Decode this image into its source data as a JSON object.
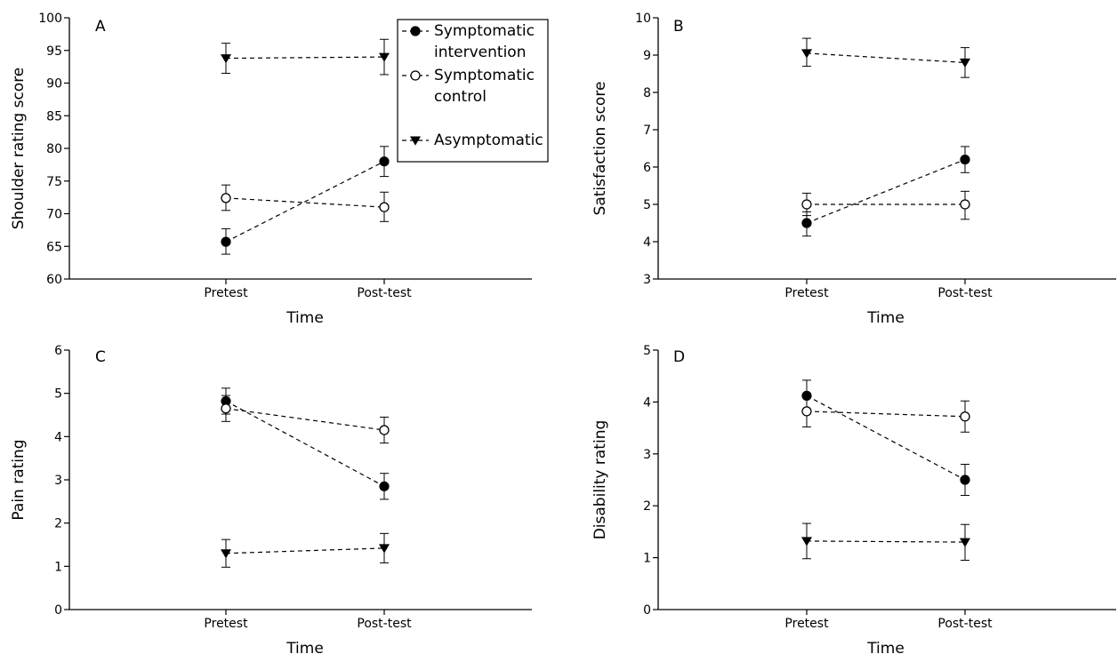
{
  "figure": {
    "legend": {
      "items": [
        {
          "label_lines": [
            "Symptomatic",
            "intervention"
          ],
          "marker": "filled-circle"
        },
        {
          "label_lines": [
            "Symptomatic",
            "control"
          ],
          "marker": "open-circle"
        },
        {
          "label_lines": [
            "Asymptomatic"
          ],
          "marker": "filled-triangle-down"
        }
      ]
    }
  },
  "chart_data": [
    {
      "type": "line",
      "panel_label": "A",
      "xlabel": "Time",
      "ylabel": "Shoulder rating score",
      "categories": [
        "Pretest",
        "Post-test"
      ],
      "ylim": [
        60,
        100
      ],
      "yticks": [
        60,
        65,
        70,
        75,
        80,
        85,
        90,
        95,
        100
      ],
      "grid": false,
      "series": [
        {
          "name": "Symptomatic intervention",
          "marker": "filled-circle",
          "values": [
            65.7,
            78.0
          ],
          "err_low": [
            63.8,
            75.7
          ],
          "err_high": [
            67.7,
            80.3
          ]
        },
        {
          "name": "Symptomatic control",
          "marker": "open-circle",
          "values": [
            72.4,
            71.0
          ],
          "err_low": [
            70.5,
            68.8
          ],
          "err_high": [
            74.4,
            73.3
          ]
        },
        {
          "name": "Asymptomatic",
          "marker": "filled-triangle-down",
          "values": [
            93.8,
            94.0
          ],
          "err_low": [
            91.5,
            91.3
          ],
          "err_high": [
            96.1,
            96.7
          ]
        }
      ]
    },
    {
      "type": "line",
      "panel_label": "B",
      "xlabel": "Time",
      "ylabel": "Satisfaction score",
      "categories": [
        "Pretest",
        "Post-test"
      ],
      "ylim": [
        3,
        10
      ],
      "yticks": [
        3,
        4,
        5,
        6,
        7,
        8,
        9,
        10
      ],
      "grid": false,
      "series": [
        {
          "name": "Symptomatic intervention",
          "marker": "filled-circle",
          "values": [
            4.5,
            6.2
          ],
          "err_low": [
            4.15,
            5.85
          ],
          "err_high": [
            4.8,
            6.55
          ]
        },
        {
          "name": "Symptomatic control",
          "marker": "open-circle",
          "values": [
            5.0,
            5.0
          ],
          "err_low": [
            4.7,
            4.6
          ],
          "err_high": [
            5.3,
            5.35
          ]
        },
        {
          "name": "Asymptomatic",
          "marker": "filled-triangle-down",
          "values": [
            9.05,
            8.8
          ],
          "err_low": [
            8.7,
            8.4
          ],
          "err_high": [
            9.45,
            9.2
          ]
        }
      ]
    },
    {
      "type": "line",
      "panel_label": "C",
      "xlabel": "Time",
      "ylabel": "Pain rating",
      "categories": [
        "Pretest",
        "Post-test"
      ],
      "ylim": [
        0,
        6
      ],
      "yticks": [
        0,
        1,
        2,
        3,
        4,
        5,
        6
      ],
      "grid": false,
      "series": [
        {
          "name": "Symptomatic intervention",
          "marker": "filled-circle",
          "values": [
            4.82,
            2.85
          ],
          "err_low": [
            4.52,
            2.55
          ],
          "err_high": [
            5.12,
            3.15
          ]
        },
        {
          "name": "Symptomatic control",
          "marker": "open-circle",
          "values": [
            4.65,
            4.15
          ],
          "err_low": [
            4.35,
            3.85
          ],
          "err_high": [
            4.95,
            4.45
          ]
        },
        {
          "name": "Asymptomatic",
          "marker": "filled-triangle-down",
          "values": [
            1.3,
            1.42
          ],
          "err_low": [
            0.98,
            1.08
          ],
          "err_high": [
            1.62,
            1.76
          ]
        }
      ]
    },
    {
      "type": "line",
      "panel_label": "D",
      "xlabel": "Time",
      "ylabel": "Disability rating",
      "categories": [
        "Pretest",
        "Post-test"
      ],
      "ylim": [
        0,
        5
      ],
      "yticks": [
        0,
        1,
        2,
        3,
        4,
        5
      ],
      "grid": false,
      "series": [
        {
          "name": "Symptomatic intervention",
          "marker": "filled-circle",
          "values": [
            4.12,
            2.5
          ],
          "err_low": [
            3.82,
            2.2
          ],
          "err_high": [
            4.42,
            2.8
          ]
        },
        {
          "name": "Symptomatic control",
          "marker": "open-circle",
          "values": [
            3.82,
            3.72
          ],
          "err_low": [
            3.52,
            3.42
          ],
          "err_high": [
            4.12,
            4.02
          ]
        },
        {
          "name": "Asymptomatic",
          "marker": "filled-triangle-down",
          "values": [
            1.32,
            1.3
          ],
          "err_low": [
            0.98,
            0.95
          ],
          "err_high": [
            1.66,
            1.64
          ]
        }
      ]
    }
  ]
}
